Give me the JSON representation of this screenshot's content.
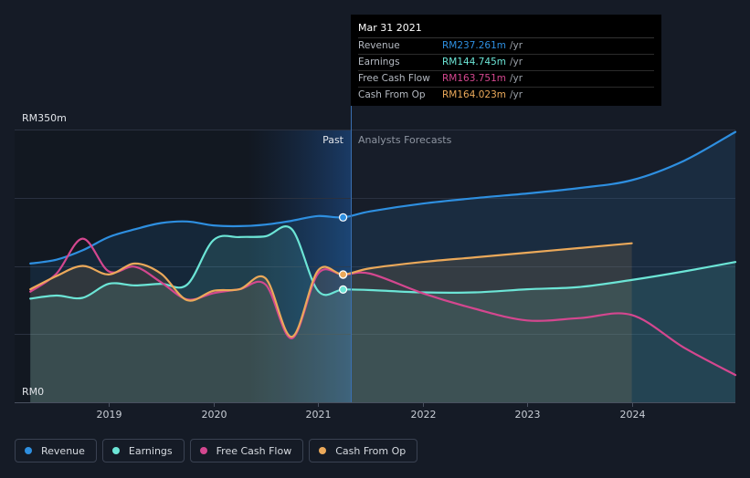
{
  "chart_data": {
    "type": "line",
    "y_axis": {
      "top_label": "RM350m",
      "bottom_label": "RM0",
      "ylim": [
        0,
        350
      ]
    },
    "x_ticks": [
      "2019",
      "2020",
      "2021",
      "2022",
      "2023",
      "2024"
    ],
    "past_label": "Past",
    "forecast_label": "Analysts Forecasts",
    "divider_date": 2021.24,
    "series": [
      {
        "name": "Revenue",
        "color": "#2e8fe0",
        "fill": true,
        "points": [
          [
            2018.25,
            178
          ],
          [
            2018.5,
            183
          ],
          [
            2018.75,
            195
          ],
          [
            2019.0,
            212
          ],
          [
            2019.25,
            222
          ],
          [
            2019.5,
            230
          ],
          [
            2019.75,
            232
          ],
          [
            2020.0,
            227
          ],
          [
            2020.25,
            226
          ],
          [
            2020.5,
            228
          ],
          [
            2020.75,
            233
          ],
          [
            2021.0,
            239
          ],
          [
            2021.24,
            237.261
          ],
          [
            2021.5,
            245
          ],
          [
            2022.0,
            255
          ],
          [
            2022.5,
            262
          ],
          [
            2023.0,
            268
          ],
          [
            2023.5,
            275
          ],
          [
            2024.0,
            285
          ],
          [
            2024.5,
            310
          ],
          [
            2024.99,
            347
          ]
        ],
        "marker": [
          2021.24,
          237.261
        ]
      },
      {
        "name": "Earnings",
        "color": "#6ce5d6",
        "fill": true,
        "points": [
          [
            2018.25,
            133
          ],
          [
            2018.5,
            137
          ],
          [
            2018.75,
            134
          ],
          [
            2019.0,
            152
          ],
          [
            2019.25,
            150
          ],
          [
            2019.5,
            152
          ],
          [
            2019.75,
            151
          ],
          [
            2020.0,
            208
          ],
          [
            2020.25,
            212
          ],
          [
            2020.5,
            213
          ],
          [
            2020.75,
            222
          ],
          [
            2021.0,
            143
          ],
          [
            2021.24,
            144.745
          ],
          [
            2021.5,
            144
          ],
          [
            2022.0,
            141
          ],
          [
            2022.5,
            141
          ],
          [
            2023.0,
            145
          ],
          [
            2023.5,
            148
          ],
          [
            2024.0,
            157
          ],
          [
            2024.5,
            168
          ],
          [
            2024.99,
            180
          ]
        ],
        "marker": [
          2021.24,
          144.745
        ]
      },
      {
        "name": "Free Cash Flow",
        "color": "#d4478f",
        "fill": false,
        "points": [
          [
            2018.25,
            142
          ],
          [
            2018.5,
            165
          ],
          [
            2018.75,
            210
          ],
          [
            2019.0,
            168
          ],
          [
            2019.25,
            174
          ],
          [
            2019.5,
            154
          ],
          [
            2019.75,
            132
          ],
          [
            2020.0,
            140
          ],
          [
            2020.25,
            145
          ],
          [
            2020.5,
            151
          ],
          [
            2020.75,
            82
          ],
          [
            2021.0,
            165
          ],
          [
            2021.24,
            163.751
          ],
          [
            2021.5,
            165
          ],
          [
            2022.0,
            140
          ],
          [
            2022.5,
            120
          ],
          [
            2023.0,
            105
          ],
          [
            2023.5,
            108
          ],
          [
            2024.0,
            112
          ],
          [
            2024.5,
            70
          ],
          [
            2024.99,
            35
          ]
        ],
        "marker": [
          2021.24,
          163.751
        ]
      },
      {
        "name": "Cash From Op",
        "color": "#eba95a",
        "fill": true,
        "points": [
          [
            2018.25,
            145
          ],
          [
            2018.5,
            162
          ],
          [
            2018.75,
            175
          ],
          [
            2019.0,
            164
          ],
          [
            2019.25,
            178
          ],
          [
            2019.5,
            165
          ],
          [
            2019.75,
            131
          ],
          [
            2020.0,
            143
          ],
          [
            2020.25,
            145
          ],
          [
            2020.5,
            159
          ],
          [
            2020.75,
            84
          ],
          [
            2021.0,
            169
          ],
          [
            2021.24,
            164.023
          ],
          [
            2021.5,
            172
          ],
          [
            2022.0,
            180
          ],
          [
            2022.5,
            186
          ],
          [
            2023.0,
            192
          ],
          [
            2023.5,
            198
          ],
          [
            2024.0,
            204
          ]
        ],
        "marker": [
          2021.24,
          164.023
        ]
      }
    ]
  },
  "tooltip": {
    "date": "Mar 31 2021",
    "unit": "/yr",
    "rows": [
      {
        "label": "Revenue",
        "value": "RM237.261m",
        "color": "#2e8fe0"
      },
      {
        "label": "Earnings",
        "value": "RM144.745m",
        "color": "#6ce5d6"
      },
      {
        "label": "Free Cash Flow",
        "value": "RM163.751m",
        "color": "#d4478f"
      },
      {
        "label": "Cash From Op",
        "value": "RM164.023m",
        "color": "#eba95a"
      }
    ]
  },
  "legend": [
    {
      "label": "Revenue",
      "color": "#2e8fe0"
    },
    {
      "label": "Earnings",
      "color": "#6ce5d6"
    },
    {
      "label": "Free Cash Flow",
      "color": "#d4478f"
    },
    {
      "label": "Cash From Op",
      "color": "#eba95a"
    }
  ]
}
